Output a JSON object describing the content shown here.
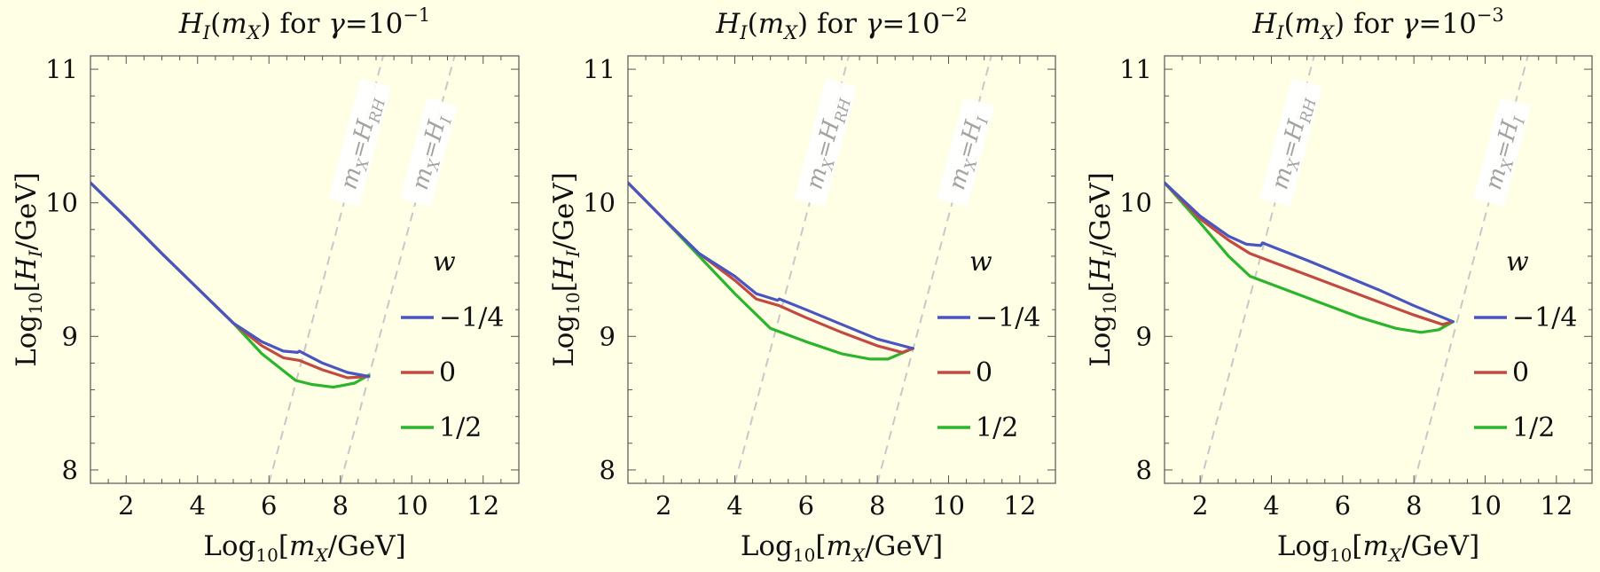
{
  "chart_data": [
    {
      "type": "line",
      "title": "H_I(m_X) for γ=10^-1",
      "title_parts": {
        "func": "H",
        "func_sub": "I",
        "arg": "m",
        "arg_sub": "X",
        "mid": " for ",
        "gamma": "γ",
        "eq": "=",
        "base": "10",
        "exp": "−1"
      },
      "xlabel": "Log10[m_X/GeV]",
      "ylabel": "Log10[H_I/GeV]",
      "xlim": [
        1,
        13
      ],
      "ylim": [
        7.9,
        11.1
      ],
      "xticks": [
        2,
        4,
        6,
        8,
        10,
        12
      ],
      "yticks": [
        8,
        9,
        10,
        11
      ],
      "legend_title": "w",
      "series": [
        {
          "name": "−1/4",
          "color": "#4a55c0",
          "points": [
            [
              1.0,
              10.15
            ],
            [
              2,
              9.89
            ],
            [
              3,
              9.62
            ],
            [
              4,
              9.36
            ],
            [
              5,
              9.1
            ],
            [
              5.8,
              8.96
            ],
            [
              6.4,
              8.89
            ],
            [
              6.8,
              8.88
            ],
            [
              6.85,
              8.89
            ],
            [
              7.5,
              8.8
            ],
            [
              8.2,
              8.73
            ],
            [
              8.8,
              8.7
            ]
          ]
        },
        {
          "name": "0",
          "color": "#c24a42",
          "points": [
            [
              1.0,
              10.15
            ],
            [
              2,
              9.89
            ],
            [
              3,
              9.62
            ],
            [
              4,
              9.36
            ],
            [
              5,
              9.1
            ],
            [
              5.8,
              8.93
            ],
            [
              6.4,
              8.84
            ],
            [
              6.85,
              8.82
            ],
            [
              7.5,
              8.75
            ],
            [
              8.2,
              8.69
            ],
            [
              8.8,
              8.7
            ]
          ]
        },
        {
          "name": "1/2",
          "color": "#2cb52c",
          "points": [
            [
              1.0,
              10.15
            ],
            [
              2,
              9.89
            ],
            [
              3,
              9.62
            ],
            [
              4,
              9.36
            ],
            [
              5,
              9.1
            ],
            [
              5.8,
              8.87
            ],
            [
              6.75,
              8.67
            ],
            [
              7.2,
              8.64
            ],
            [
              7.8,
              8.62
            ],
            [
              8.4,
              8.65
            ],
            [
              8.8,
              8.71
            ]
          ]
        }
      ],
      "guides": [
        {
          "label": "m_X=H_RH",
          "label_main": "m",
          "label_sub": "X",
          "label_eq": "=",
          "label_rhs": "H",
          "label_rhs_sub": "RH",
          "points": [
            [
              6.0,
              7.9
            ],
            [
              9.2,
              11.1
            ]
          ]
        },
        {
          "label": "m_X=H_I",
          "label_main": "m",
          "label_sub": "X",
          "label_eq": "=",
          "label_rhs": "H",
          "label_rhs_sub": "I",
          "points": [
            [
              8.0,
              7.9
            ],
            [
              11.2,
              11.1
            ]
          ]
        }
      ]
    },
    {
      "type": "line",
      "title": "H_I(m_X) for γ=10^-2",
      "title_parts": {
        "func": "H",
        "func_sub": "I",
        "arg": "m",
        "arg_sub": "X",
        "mid": " for ",
        "gamma": "γ",
        "eq": "=",
        "base": "10",
        "exp": "−2"
      },
      "xlabel": "Log10[m_X/GeV]",
      "ylabel": "Log10[H_I/GeV]",
      "xlim": [
        1,
        13
      ],
      "ylim": [
        7.9,
        11.1
      ],
      "xticks": [
        2,
        4,
        6,
        8,
        10,
        12
      ],
      "yticks": [
        8,
        9,
        10,
        11
      ],
      "legend_title": "w",
      "series": [
        {
          "name": "−1/4",
          "color": "#4a55c0",
          "points": [
            [
              1.0,
              10.15
            ],
            [
              2,
              9.88
            ],
            [
              3,
              9.62
            ],
            [
              4,
              9.45
            ],
            [
              4.6,
              9.32
            ],
            [
              5.2,
              9.27
            ],
            [
              5.25,
              9.28
            ],
            [
              6,
              9.2
            ],
            [
              7,
              9.09
            ],
            [
              8,
              8.98
            ],
            [
              9,
              8.91
            ]
          ]
        },
        {
          "name": "0",
          "color": "#c24a42",
          "points": [
            [
              1.0,
              10.15
            ],
            [
              2,
              9.88
            ],
            [
              3,
              9.62
            ],
            [
              4,
              9.42
            ],
            [
              4.6,
              9.28
            ],
            [
              5.25,
              9.23
            ],
            [
              6,
              9.14
            ],
            [
              7,
              9.03
            ],
            [
              8,
              8.93
            ],
            [
              8.7,
              8.88
            ],
            [
              9,
              8.91
            ]
          ]
        },
        {
          "name": "1/2",
          "color": "#2cb52c",
          "points": [
            [
              1.0,
              10.15
            ],
            [
              2,
              9.88
            ],
            [
              3,
              9.6
            ],
            [
              4,
              9.32
            ],
            [
              5.0,
              9.06
            ],
            [
              6,
              8.96
            ],
            [
              7,
              8.87
            ],
            [
              7.8,
              8.83
            ],
            [
              8.3,
              8.83
            ],
            [
              9,
              8.91
            ]
          ]
        }
      ],
      "guides": [
        {
          "label": "m_X=H_RH",
          "label_main": "m",
          "label_sub": "X",
          "label_eq": "=",
          "label_rhs": "H",
          "label_rhs_sub": "RH",
          "points": [
            [
              4.0,
              7.9
            ],
            [
              7.2,
              11.1
            ]
          ]
        },
        {
          "label": "m_X=H_I",
          "label_main": "m",
          "label_sub": "X",
          "label_eq": "=",
          "label_rhs": "H",
          "label_rhs_sub": "I",
          "points": [
            [
              8.0,
              7.9
            ],
            [
              11.2,
              11.1
            ]
          ]
        }
      ]
    },
    {
      "type": "line",
      "title": "H_I(m_X) for γ=10^-3",
      "title_parts": {
        "func": "H",
        "func_sub": "I",
        "arg": "m",
        "arg_sub": "X",
        "mid": " for ",
        "gamma": "γ",
        "eq": "=",
        "base": "10",
        "exp": "−3"
      },
      "xlabel": "Log10[m_X/GeV]",
      "ylabel": "Log10[H_I/GeV]",
      "xlim": [
        1,
        13
      ],
      "ylim": [
        7.9,
        11.1
      ],
      "xticks": [
        2,
        4,
        6,
        8,
        10,
        12
      ],
      "yticks": [
        8,
        9,
        10,
        11
      ],
      "legend_title": "w",
      "series": [
        {
          "name": "−1/4",
          "color": "#4a55c0",
          "points": [
            [
              1.0,
              10.15
            ],
            [
              2,
              9.9
            ],
            [
              2.8,
              9.75
            ],
            [
              3.3,
              9.69
            ],
            [
              3.7,
              9.68
            ],
            [
              3.75,
              9.7
            ],
            [
              5,
              9.57
            ],
            [
              6,
              9.46
            ],
            [
              7,
              9.35
            ],
            [
              8,
              9.23
            ],
            [
              9.1,
              9.11
            ]
          ]
        },
        {
          "name": "0",
          "color": "#c24a42",
          "points": [
            [
              1.0,
              10.15
            ],
            [
              2,
              9.88
            ],
            [
              2.8,
              9.72
            ],
            [
              3.4,
              9.62
            ],
            [
              4,
              9.56
            ],
            [
              5,
              9.46
            ],
            [
              6,
              9.36
            ],
            [
              7,
              9.26
            ],
            [
              8,
              9.16
            ],
            [
              8.8,
              9.09
            ],
            [
              9.1,
              9.11
            ]
          ]
        },
        {
          "name": "1/2",
          "color": "#2cb52c",
          "points": [
            [
              1.0,
              10.15
            ],
            [
              2,
              9.85
            ],
            [
              2.8,
              9.6
            ],
            [
              3.4,
              9.45
            ],
            [
              4.5,
              9.34
            ],
            [
              5.5,
              9.24
            ],
            [
              6.5,
              9.14
            ],
            [
              7.5,
              9.06
            ],
            [
              8.2,
              9.03
            ],
            [
              8.7,
              9.05
            ],
            [
              9.1,
              9.11
            ]
          ]
        }
      ],
      "guides": [
        {
          "label": "m_X=H_RH",
          "label_main": "m",
          "label_sub": "X",
          "label_eq": "=",
          "label_rhs": "H",
          "label_rhs_sub": "RH",
          "points": [
            [
              2.0,
              7.9
            ],
            [
              5.2,
              11.1
            ]
          ]
        },
        {
          "label": "m_X=H_I",
          "label_main": "m",
          "label_sub": "X",
          "label_eq": "=",
          "label_rhs": "H",
          "label_rhs_sub": "I",
          "points": [
            [
              8.0,
              7.9
            ],
            [
              11.2,
              11.1
            ]
          ]
        }
      ]
    }
  ]
}
